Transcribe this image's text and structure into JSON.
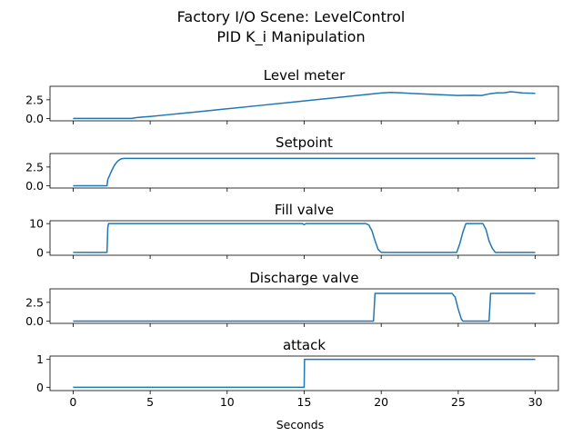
{
  "chart_data": {
    "type": "line",
    "title": "Factory I/O Scene: LevelControl",
    "subtitle": "PID K_i Manipulation",
    "xlabel": "Seconds",
    "xlim": [
      -1.5,
      31.5
    ],
    "xticks": [
      0,
      5,
      10,
      15,
      20,
      25,
      30
    ],
    "line_color": "#1f77b4",
    "grid": false,
    "panels": [
      {
        "title": "Level meter",
        "ylim": [
          -0.3,
          4.3
        ],
        "yticks": [
          "0.0",
          "2.5"
        ],
        "points": [
          [
            0,
            0.02
          ],
          [
            3.8,
            0.02
          ],
          [
            4.1,
            0.12
          ],
          [
            4.5,
            0.2
          ],
          [
            5,
            0.28
          ],
          [
            6,
            0.48
          ],
          [
            7,
            0.68
          ],
          [
            8,
            0.88
          ],
          [
            10,
            1.3
          ],
          [
            12,
            1.72
          ],
          [
            14,
            2.14
          ],
          [
            16,
            2.56
          ],
          [
            18,
            2.98
          ],
          [
            19.5,
            3.3
          ],
          [
            20,
            3.4
          ],
          [
            20.6,
            3.48
          ],
          [
            21.2,
            3.44
          ],
          [
            22,
            3.34
          ],
          [
            23,
            3.26
          ],
          [
            24,
            3.16
          ],
          [
            25,
            3.08
          ],
          [
            26,
            3.1
          ],
          [
            26.5,
            3.08
          ],
          [
            27,
            3.28
          ],
          [
            27.5,
            3.42
          ],
          [
            28,
            3.44
          ],
          [
            28.4,
            3.58
          ],
          [
            28.8,
            3.5
          ],
          [
            29.2,
            3.4
          ],
          [
            30,
            3.36
          ]
        ]
      },
      {
        "title": "Setpoint",
        "ylim": [
          -0.3,
          4.3
        ],
        "yticks": [
          "0.0",
          "2.5"
        ],
        "points": [
          [
            0,
            0
          ],
          [
            2.2,
            0
          ],
          [
            2.25,
            0.85
          ],
          [
            2.35,
            1.3
          ],
          [
            2.5,
            2.0
          ],
          [
            2.7,
            2.8
          ],
          [
            2.9,
            3.3
          ],
          [
            3.1,
            3.58
          ],
          [
            3.3,
            3.65
          ],
          [
            30,
            3.65
          ]
        ]
      },
      {
        "title": "Fill valve",
        "ylim": [
          -1,
          11
        ],
        "yticks": [
          "0",
          "10"
        ],
        "points": [
          [
            0,
            0
          ],
          [
            2.2,
            0
          ],
          [
            2.25,
            8.5
          ],
          [
            2.3,
            10
          ],
          [
            14.9,
            10
          ],
          [
            15,
            9.6
          ],
          [
            15.1,
            10
          ],
          [
            19,
            10
          ],
          [
            19.2,
            9.5
          ],
          [
            19.4,
            7.5
          ],
          [
            19.6,
            4
          ],
          [
            19.8,
            1
          ],
          [
            20,
            0
          ],
          [
            24.9,
            0
          ],
          [
            25.1,
            3
          ],
          [
            25.3,
            7
          ],
          [
            25.5,
            10
          ],
          [
            26.6,
            10
          ],
          [
            26.8,
            8
          ],
          [
            27,
            4
          ],
          [
            27.2,
            1.5
          ],
          [
            27.4,
            0
          ],
          [
            30,
            0
          ]
        ]
      },
      {
        "title": "Discharge valve",
        "ylim": [
          -0.3,
          4.3
        ],
        "yticks": [
          "0.0",
          "2.5"
        ],
        "points": [
          [
            0,
            0
          ],
          [
            19.5,
            0
          ],
          [
            19.6,
            3.7
          ],
          [
            24.6,
            3.7
          ],
          [
            24.8,
            3.2
          ],
          [
            25,
            1.6
          ],
          [
            25.2,
            0.3
          ],
          [
            25.3,
            0
          ],
          [
            27,
            0
          ],
          [
            27.1,
            3.7
          ],
          [
            30,
            3.7
          ]
        ]
      },
      {
        "title": "attack",
        "ylim": [
          -0.12,
          1.12
        ],
        "yticks": [
          "0",
          "1"
        ],
        "points": [
          [
            0,
            0
          ],
          [
            15,
            0
          ],
          [
            15.02,
            1
          ],
          [
            30,
            1
          ]
        ]
      }
    ]
  }
}
